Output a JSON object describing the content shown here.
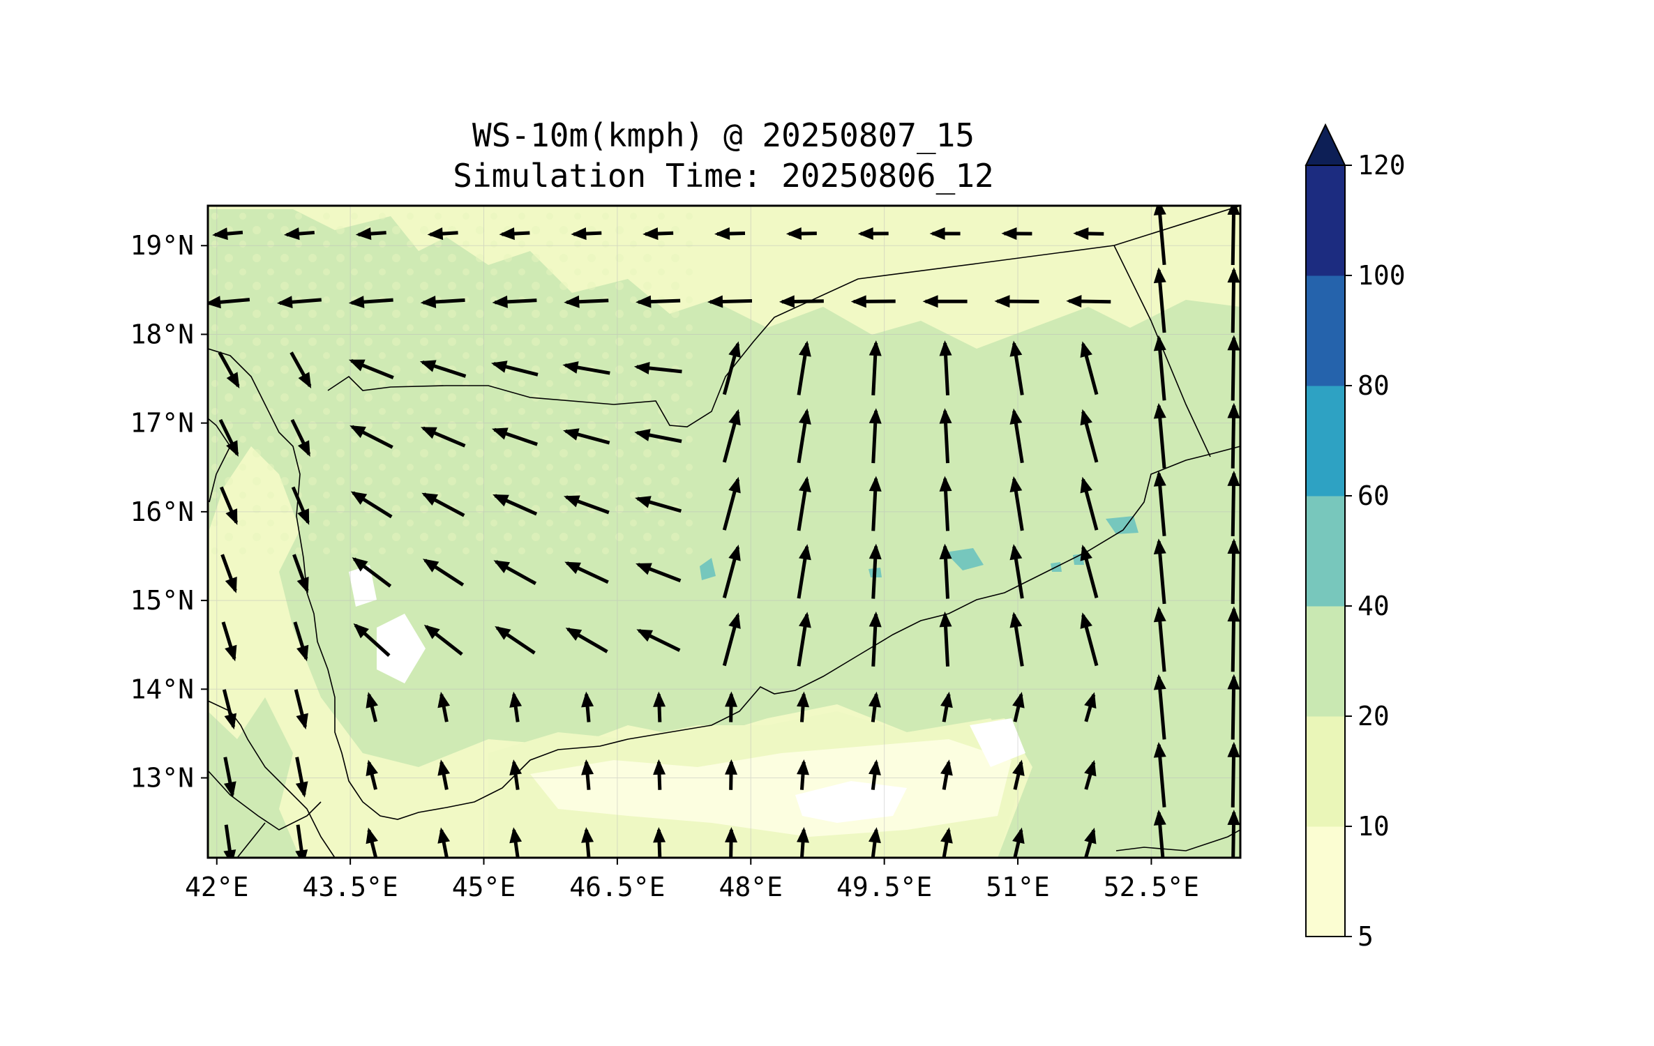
{
  "title": {
    "line1": "WS-10m(kmph) @ 20250807_15",
    "line2": "Simulation Time: 20250806_12"
  },
  "map": {
    "lon_range": [
      41.9,
      53.5
    ],
    "lat_range": [
      12.1,
      19.45
    ],
    "x_ticks": [
      {
        "value": 42.0,
        "label": "42°E"
      },
      {
        "value": 43.5,
        "label": "43.5°E"
      },
      {
        "value": 45.0,
        "label": "45°E"
      },
      {
        "value": 46.5,
        "label": "46.5°E"
      },
      {
        "value": 48.0,
        "label": "48°E"
      },
      {
        "value": 49.5,
        "label": "49.5°E"
      },
      {
        "value": 51.0,
        "label": "51°E"
      },
      {
        "value": 52.5,
        "label": "52.5°E"
      }
    ],
    "y_ticks": [
      {
        "value": 19,
        "label": "19°N"
      },
      {
        "value": 18,
        "label": "18°N"
      },
      {
        "value": 17,
        "label": "17°N"
      },
      {
        "value": 16,
        "label": "16°N"
      },
      {
        "value": 15,
        "label": "15°N"
      },
      {
        "value": 14,
        "label": "14°N"
      },
      {
        "value": 13,
        "label": "13°N"
      }
    ],
    "gridlines": true,
    "wind_arrows": "vector field of 10 m wind directions over Yemen region",
    "colors": {
      "ocean": "#f1f9c5",
      "land_main": "#d3ecb4",
      "land_light": "#eef8c3",
      "calm": "#ffffff",
      "patch": "#76c7bd",
      "border": "#000000"
    }
  },
  "colorbar": {
    "levels": [
      "5",
      "10",
      "20",
      "40",
      "60",
      "80",
      "100",
      "120"
    ],
    "colors": [
      "#fbfdd2",
      "#eaf6b8",
      "#c9e8b2",
      "#78c7bc",
      "#2ea2c3",
      "#2563ac",
      "#1c2c80"
    ],
    "extend_color": "#0d1f56",
    "extend": "max"
  }
}
